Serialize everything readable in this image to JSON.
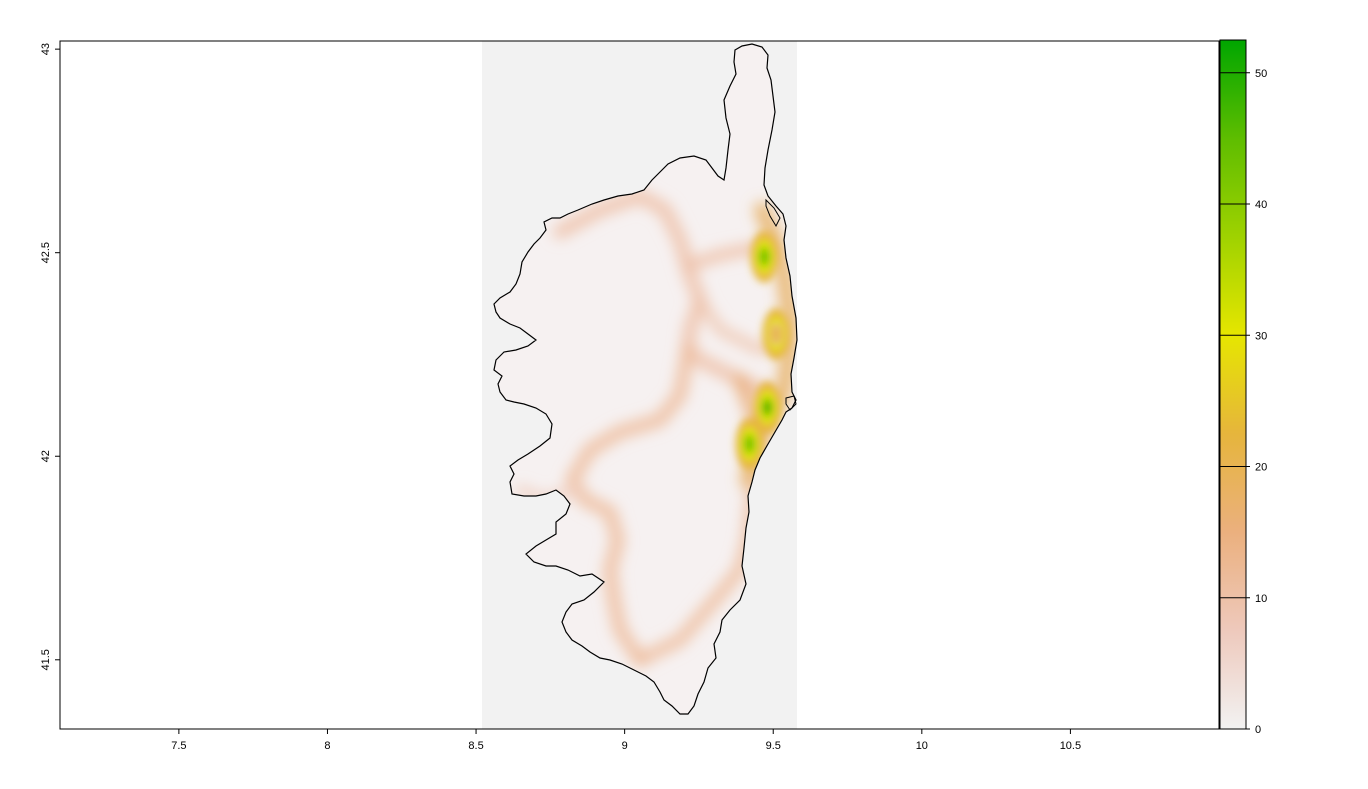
{
  "chart_data": {
    "type": "heatmap",
    "title": "",
    "xlabel": "",
    "ylabel": "",
    "xlim": [
      7.1,
      11.0
    ],
    "ylim": [
      41.33,
      43.02
    ],
    "raster_extent": {
      "x": [
        8.52,
        9.58
      ],
      "y": [
        41.33,
        43.02
      ]
    },
    "x_ticks": [
      {
        "value": 7.5,
        "label": "7.5"
      },
      {
        "value": 8,
        "label": "8"
      },
      {
        "value": 8.5,
        "label": "8.5"
      },
      {
        "value": 9,
        "label": "9"
      },
      {
        "value": 9.5,
        "label": "9.5"
      },
      {
        "value": 10,
        "label": "10"
      },
      {
        "value": 10.5,
        "label": "10.5"
      }
    ],
    "y_ticks": [
      {
        "value": 41.5,
        "label": "41.5"
      },
      {
        "value": 42,
        "label": "42"
      },
      {
        "value": 42.5,
        "label": "42.5"
      },
      {
        "value": 43,
        "label": "43"
      }
    ],
    "legend": {
      "position": "right",
      "min": 0,
      "max": 52.5,
      "ticks": [
        {
          "value": 0,
          "label": "0"
        },
        {
          "value": 10,
          "label": "10"
        },
        {
          "value": 20,
          "label": "20"
        },
        {
          "value": 30,
          "label": "30"
        },
        {
          "value": 40,
          "label": "40"
        },
        {
          "value": 50,
          "label": "50"
        }
      ],
      "colors": [
        "#f2f2f2",
        "#eec9bc",
        "#ebb07e",
        "#e6b53c",
        "#e6e600",
        "#9fd200",
        "#5ebd00",
        "#00a600"
      ]
    },
    "background_color": "#f2f2f2",
    "outline_color": "#000000",
    "hotspots": [
      {
        "lon": 9.48,
        "lat": 42.12,
        "value": 50
      },
      {
        "lon": 9.47,
        "lat": 42.49,
        "value": 48
      },
      {
        "lon": 9.42,
        "lat": 42.03,
        "value": 45
      },
      {
        "lon": 9.51,
        "lat": 42.3,
        "value": 25
      }
    ]
  }
}
